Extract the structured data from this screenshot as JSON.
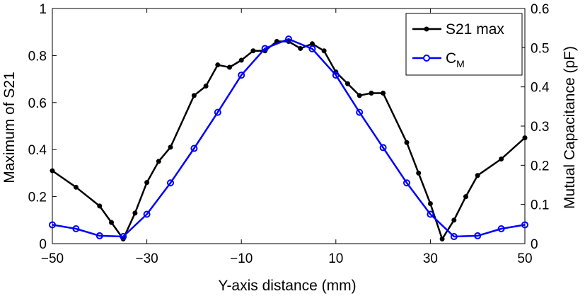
{
  "chart_data": {
    "type": "line",
    "xlabel": "Y-axis distance (mm)",
    "ylabel_left": "Maximum of S21",
    "ylabel_right": "Mutual Capacitance (pF)",
    "xlim": [
      -50,
      50
    ],
    "ylim_left": [
      0,
      1
    ],
    "ylim_right": [
      0,
      0.6
    ],
    "xticks": [
      -50,
      -30,
      -10,
      10,
      30,
      50
    ],
    "yticks_left": [
      0,
      0.2,
      0.4,
      0.6,
      0.8,
      1
    ],
    "yticks_right": [
      0,
      0.1,
      0.2,
      0.3,
      0.4,
      0.5,
      0.6
    ],
    "ytick_labels_left": [
      "0",
      "0.2",
      "0.4",
      "0.6",
      "0.8",
      "1"
    ],
    "ytick_labels_right": [
      "0",
      "0.1",
      "0.2",
      "0.3",
      "0.4",
      "0.5",
      "0.6"
    ],
    "grid": false,
    "legend_position": "top-right",
    "series": [
      {
        "name": "S21 max",
        "axis": "left",
        "color": "#000000",
        "marker": "filled-circle",
        "x": [
          -50,
          -45,
          -40,
          -37.5,
          -35,
          -32.5,
          -30,
          -27.5,
          -25,
          -20,
          -17.5,
          -15,
          -12.5,
          -10,
          -7.5,
          -5,
          -2.5,
          0,
          2.5,
          5,
          7.5,
          10,
          12.5,
          15,
          17.5,
          20,
          25,
          27.5,
          30,
          32.5,
          35,
          37.5,
          40,
          45,
          50
        ],
        "y": [
          0.31,
          0.24,
          0.16,
          0.09,
          0.02,
          0.13,
          0.26,
          0.35,
          0.41,
          0.63,
          0.67,
          0.76,
          0.75,
          0.78,
          0.82,
          0.82,
          0.86,
          0.86,
          0.83,
          0.85,
          0.82,
          0.73,
          0.68,
          0.63,
          0.64,
          0.64,
          0.43,
          0.3,
          0.17,
          0.02,
          0.1,
          0.2,
          0.29,
          0.36,
          0.45
        ]
      },
      {
        "name": "C_M",
        "axis": "right",
        "color": "#0000ff",
        "marker": "open-circle",
        "x": [
          -50,
          -45,
          -40,
          -35,
          -30,
          -25,
          -20,
          -15,
          -10,
          -5,
          0,
          5,
          10,
          15,
          20,
          25,
          30,
          35,
          40,
          45,
          50
        ],
        "y": [
          0.048,
          0.038,
          0.02,
          0.018,
          0.075,
          0.155,
          0.243,
          0.335,
          0.43,
          0.498,
          0.522,
          0.497,
          0.43,
          0.335,
          0.245,
          0.155,
          0.075,
          0.018,
          0.02,
          0.038,
          0.048
        ]
      }
    ],
    "legend": {
      "s21_label": "S21 max",
      "cm_label_main": "C",
      "cm_label_sub": "M"
    }
  }
}
